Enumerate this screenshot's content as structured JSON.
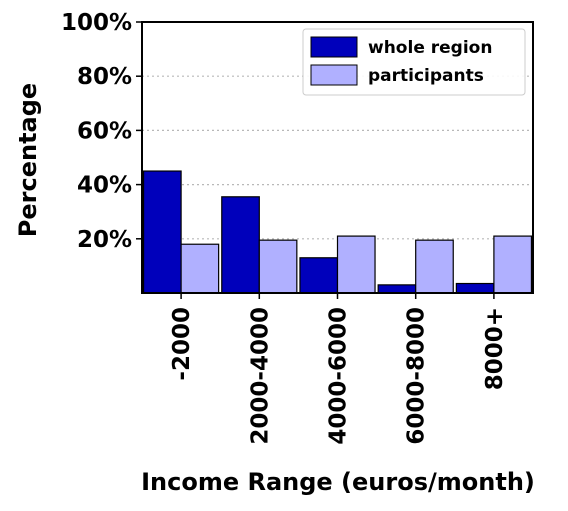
{
  "chart_data": {
    "type": "bar",
    "title": "",
    "xlabel": "Income Range (euros/month)",
    "ylabel": "Percentage",
    "categories": [
      "-2000",
      "2000-4000",
      "4000-6000",
      "6000-8000",
      "8000+"
    ],
    "series": [
      {
        "name": "whole region",
        "color": "#0000bb",
        "values": [
          45,
          35.5,
          13,
          3,
          3.5
        ]
      },
      {
        "name": "participants",
        "color": "#b0b0ff",
        "values": [
          18,
          19.5,
          21,
          19.5,
          21
        ]
      }
    ],
    "ylim": [
      0,
      100
    ],
    "yticks": [
      20,
      40,
      60,
      80,
      100
    ],
    "ytick_labels": [
      "20%",
      "40%",
      "60%",
      "80%",
      "100%"
    ],
    "grid": true,
    "legend_position": "top-right"
  }
}
